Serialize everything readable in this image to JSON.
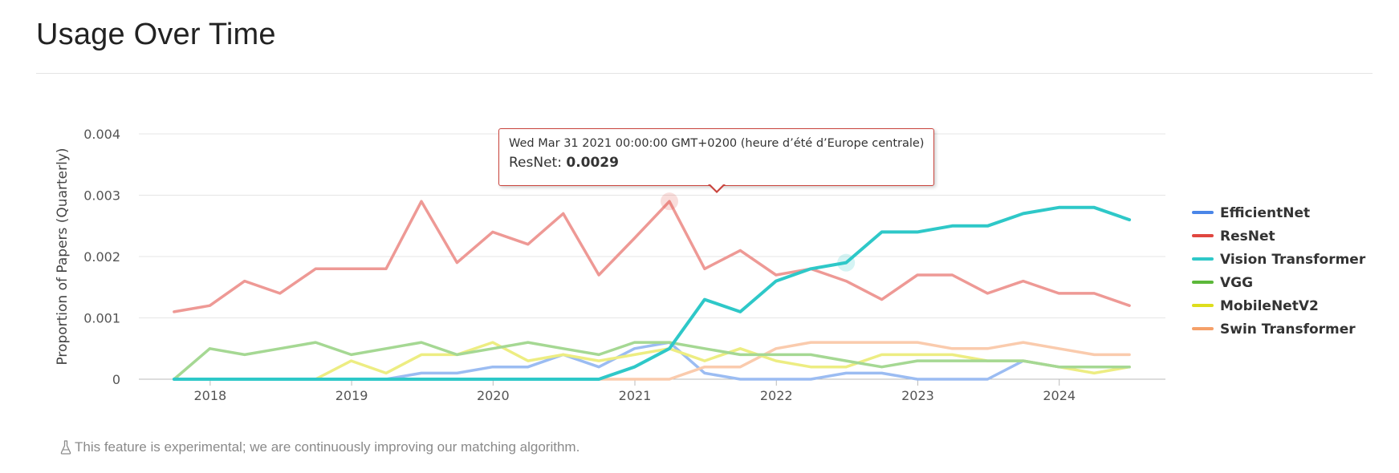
{
  "header": {
    "title": "Usage Over Time"
  },
  "footnote": {
    "text": "This feature is experimental; we are continuously improving our matching algorithm."
  },
  "tooltip": {
    "date": "Wed Mar 31 2021 00:00:00 GMT+0200 (heure d’été d’Europe centrale)",
    "series": "ResNet",
    "value": "0.0029"
  },
  "chart_data": {
    "type": "line",
    "title": "",
    "xlabel": "",
    "ylabel": "Proportion of Papers (Quarterly)",
    "ylim": [
      0,
      0.004
    ],
    "yticks": [
      0,
      0.001,
      0.002,
      0.003,
      0.004
    ],
    "ytick_labels": [
      "0",
      "0.001",
      "0.002",
      "0.003",
      "0.004"
    ],
    "xticks": [
      2018,
      2019,
      2020,
      2021,
      2022,
      2023,
      2024
    ],
    "xtick_labels": [
      "2018",
      "2019",
      "2020",
      "2021",
      "2022",
      "2023",
      "2024"
    ],
    "x": [
      "2017-09-30",
      "2017-12-31",
      "2018-03-31",
      "2018-06-30",
      "2018-09-30",
      "2018-12-31",
      "2019-03-31",
      "2019-06-30",
      "2019-09-30",
      "2019-12-31",
      "2020-03-31",
      "2020-06-30",
      "2020-09-30",
      "2020-12-31",
      "2021-03-31",
      "2021-06-30",
      "2021-09-30",
      "2021-12-31",
      "2022-03-31",
      "2022-06-30",
      "2022-09-30",
      "2022-12-31",
      "2023-03-31",
      "2023-06-30",
      "2023-09-30",
      "2023-12-31",
      "2024-03-31",
      "2024-06-30"
    ],
    "grid": true,
    "legend_position": "right",
    "highlight": {
      "series": "ResNet",
      "x": "2021-03-31",
      "value": 0.0029
    },
    "series": [
      {
        "name": "EfficientNet",
        "color": "#4a86e8",
        "values": [
          0,
          0,
          0,
          0,
          0,
          0,
          0,
          0.0001,
          0.0001,
          0.0002,
          0.0002,
          0.0004,
          0.0002,
          0.0005,
          0.0006,
          0.0001,
          0,
          0,
          0,
          0.0001,
          0.0001,
          0,
          0,
          0,
          0.0003,
          0.0002,
          0.0002,
          0.0002
        ]
      },
      {
        "name": "ResNet",
        "color": "#e0463f",
        "values": [
          0.0011,
          0.0012,
          0.0016,
          0.0014,
          0.0018,
          0.0018,
          0.0018,
          0.0029,
          0.0019,
          0.0024,
          0.0022,
          0.0027,
          0.0017,
          0.0023,
          0.0029,
          0.0018,
          0.0021,
          0.0017,
          0.0018,
          0.0016,
          0.0013,
          0.0017,
          0.0017,
          0.0014,
          0.0016,
          0.0014,
          0.0014,
          0.0012
        ]
      },
      {
        "name": "Vision Transformer",
        "color": "#2ec8c8",
        "values": [
          0,
          0,
          0,
          0,
          0,
          0,
          0,
          0,
          0,
          0,
          0,
          0,
          0,
          0.0002,
          0.0005,
          0.0013,
          0.0011,
          0.0016,
          0.0018,
          0.0019,
          0.0024,
          0.0024,
          0.0025,
          0.0025,
          0.0027,
          0.0028,
          0.0028,
          0.0026
        ]
      },
      {
        "name": "VGG",
        "color": "#5cb83a",
        "values": [
          0,
          0.0005,
          0.0004,
          0.0005,
          0.0006,
          0.0004,
          0.0005,
          0.0006,
          0.0004,
          0.0005,
          0.0006,
          0.0005,
          0.0004,
          0.0006,
          0.0006,
          0.0005,
          0.0004,
          0.0004,
          0.0004,
          0.0003,
          0.0002,
          0.0003,
          0.0003,
          0.0003,
          0.0003,
          0.0002,
          0.0002,
          0.0002
        ]
      },
      {
        "name": "MobileNetV2",
        "color": "#dede1c",
        "values": [
          0,
          0,
          0,
          0,
          0,
          0.0003,
          0.0001,
          0.0004,
          0.0004,
          0.0006,
          0.0003,
          0.0004,
          0.0003,
          0.0004,
          0.0005,
          0.0003,
          0.0005,
          0.0003,
          0.0002,
          0.0002,
          0.0004,
          0.0004,
          0.0004,
          0.0003,
          0.0003,
          0.0002,
          0.0001,
          0.0002
        ]
      },
      {
        "name": "Swin Transformer",
        "color": "#f5a069",
        "values": [
          0,
          0,
          0,
          0,
          0,
          0,
          0,
          0,
          0,
          0,
          0,
          0,
          0,
          0,
          0,
          0.0002,
          0.0002,
          0.0005,
          0.0006,
          0.0006,
          0.0006,
          0.0006,
          0.0005,
          0.0005,
          0.0006,
          0.0005,
          0.0004,
          0.0004
        ]
      }
    ]
  }
}
